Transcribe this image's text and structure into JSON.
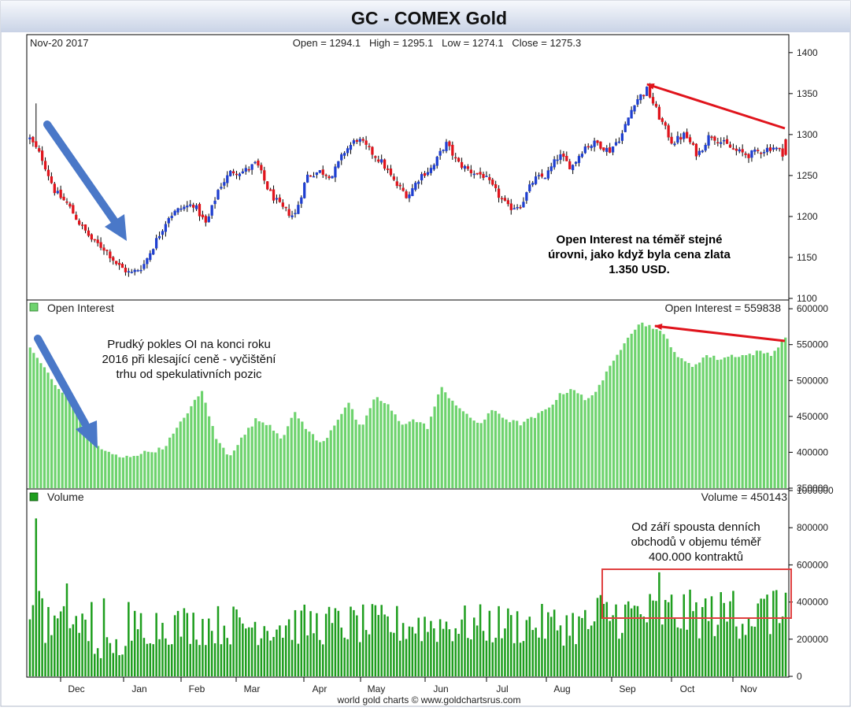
{
  "header": {
    "title": "GC - COMEX Gold",
    "date_label": "Nov-20  2017",
    "ohlc": "Open = 1294.1   High = 1295.1   Low = 1274.1   Close = 1275.3"
  },
  "footer": "world gold charts © www.goldchartsrus.com",
  "colors": {
    "up": "#1f3fd0",
    "down": "#e0141c",
    "oi": "#6ed36e",
    "volume": "#1e9e1e",
    "annotation_arrow_blue": "#4a78c8",
    "annotation_arrow_red": "#e0141c"
  },
  "annotations": {
    "price_note": [
      "Open Interest na téměř stejné",
      "úrovni, jako když byla cena zlata",
      "1.350 USD."
    ],
    "oi_note": [
      "Prudký pokles OI na konci roku",
      "2016 při klesající ceně - vyčištění",
      "trhu od spekulativních pozic"
    ],
    "volume_note": [
      "Od září spousta denních",
      "obchodů v objemu téměř",
      "400.000 kontraktů"
    ]
  },
  "chart_data": [
    {
      "type": "candlestick",
      "title": "GC - COMEX Gold",
      "ylim": [
        1100,
        1420
      ],
      "y_ticks": [
        "1400",
        "1350",
        "1300",
        "1250",
        "1200",
        "1150",
        "1100"
      ],
      "x_ticks": [
        "Dec",
        "Jan",
        "Feb",
        "Mar",
        "Apr",
        "May",
        "Jun",
        "Jul",
        "Aug",
        "Sep",
        "Oct",
        "Nov"
      ],
      "anchors_close": [
        1295,
        1270,
        1230,
        1215,
        1190,
        1170,
        1160,
        1140,
        1130,
        1140,
        1170,
        1200,
        1210,
        1215,
        1190,
        1235,
        1255,
        1255,
        1265,
        1230,
        1210,
        1200,
        1250,
        1255,
        1250,
        1280,
        1295,
        1280,
        1265,
        1240,
        1225,
        1250,
        1260,
        1290,
        1265,
        1255,
        1250,
        1230,
        1210,
        1215,
        1245,
        1250,
        1275,
        1260,
        1285,
        1290,
        1280,
        1300,
        1340,
        1355,
        1320,
        1290,
        1300,
        1275,
        1300,
        1290,
        1280,
        1275,
        1280,
        1285,
        1275
      ],
      "last": {
        "open": 1294.1,
        "high": 1295.1,
        "low": 1274.1,
        "close": 1275.3
      }
    },
    {
      "type": "bar",
      "series": [
        {
          "name": "Open Interest",
          "current": 559838
        }
      ],
      "legend_label": "Open Interest",
      "value_label": "Open Interest = 559838",
      "ylim": [
        350000,
        610000
      ],
      "y_ticks": [
        "600000",
        "550000",
        "500000",
        "450000",
        "400000",
        "350000"
      ],
      "anchors": [
        545000,
        520000,
        490000,
        480000,
        440000,
        410000,
        398000,
        392000,
        397000,
        401000,
        405000,
        430000,
        460000,
        485000,
        420000,
        395000,
        420000,
        445000,
        440000,
        420000,
        455000,
        430000,
        410000,
        440000,
        470000,
        430000,
        478000,
        465000,
        440000,
        445000,
        435000,
        490000,
        470000,
        450000,
        440000,
        460000,
        445000,
        440000,
        448000,
        460000,
        480000,
        490000,
        470000,
        495000,
        525000,
        560000,
        580000,
        575000,
        560000,
        530000,
        520000,
        535000,
        530000,
        535000,
        535000,
        540000,
        537000,
        560000
      ]
    },
    {
      "type": "bar",
      "series": [
        {
          "name": "Volume",
          "current": 450143
        }
      ],
      "legend_label": "Volume",
      "value_label": "Volume = 450143",
      "ylim": [
        0,
        1000000
      ],
      "y_ticks": [
        "1000000",
        "800000",
        "600000",
        "400000",
        "200000",
        "0"
      ],
      "base_level": 300000,
      "spikes": [
        {
          "bar": 2,
          "value": 850000
        },
        {
          "bar": 3,
          "value": 460000
        },
        {
          "bar": 4,
          "value": 420000
        },
        {
          "bar": 12,
          "value": 500000
        },
        {
          "bar": 20,
          "value": 400000
        },
        {
          "bar": 24,
          "value": 420000
        },
        {
          "bar": 32,
          "value": 400000
        },
        {
          "bar": 204,
          "value": 560000
        },
        {
          "bar": 208,
          "value": 440000
        },
        {
          "bar": 228,
          "value": 460000
        },
        {
          "bar": 239,
          "value": 440000
        },
        {
          "bar": 241,
          "value": 460000
        }
      ]
    }
  ]
}
